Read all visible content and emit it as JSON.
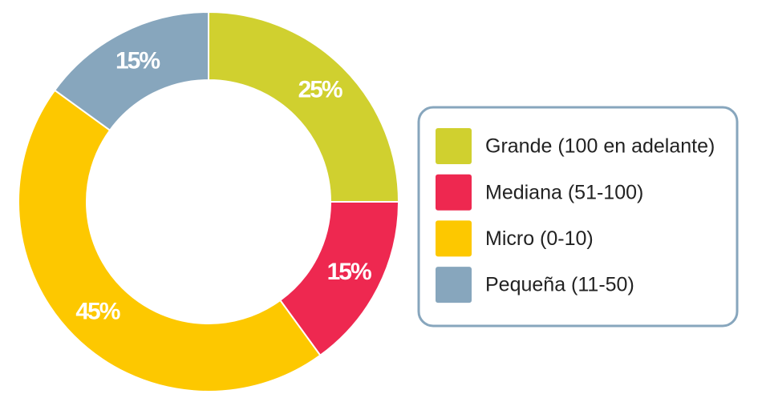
{
  "chart_data": {
    "type": "donut",
    "categories": [
      "Grande (100 en adelante)",
      "Mediana (51-100)",
      "Micro (0-10)",
      "Pequeña (11-50)"
    ],
    "values": [
      25,
      15,
      45,
      15
    ],
    "value_labels": [
      "25%",
      "15%",
      "45%",
      "15%"
    ],
    "colors": [
      "#d0d02f",
      "#ee2850",
      "#fdc800",
      "#87a6bd"
    ],
    "legend": "right"
  }
}
